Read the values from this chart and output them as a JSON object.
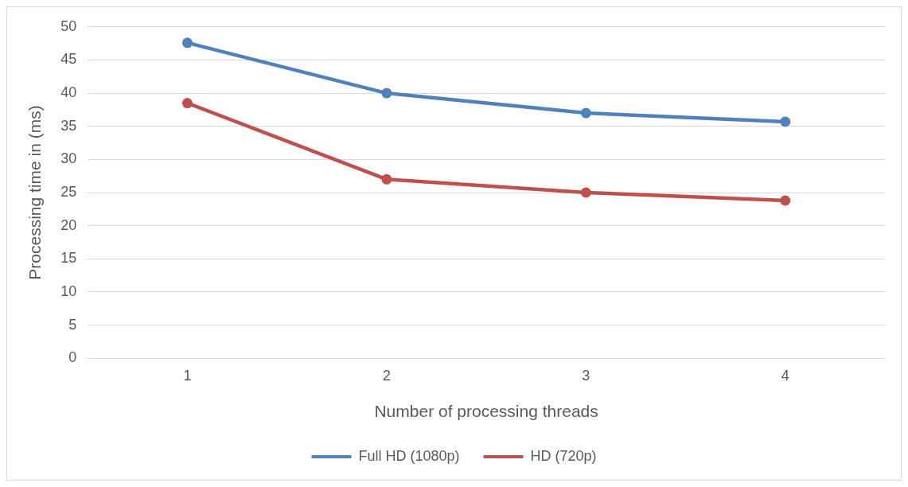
{
  "chart_data": {
    "type": "line",
    "xlabel": "Number of processing threads",
    "ylabel": "Processing time in (ms)",
    "categories": [
      "1",
      "2",
      "3",
      "4"
    ],
    "series": [
      {
        "name": "Full HD (1080p)",
        "color": "#4f81bd",
        "values": [
          47.6,
          40,
          37,
          35.7
        ]
      },
      {
        "name": "HD (720p)",
        "color": "#c0504d",
        "values": [
          38.5,
          27,
          25,
          23.8
        ]
      }
    ],
    "ylim": [
      0,
      50
    ],
    "yticks": [
      0,
      5,
      10,
      15,
      20,
      25,
      30,
      35,
      40,
      45,
      50
    ],
    "grid": "y",
    "legend": "bottom",
    "marker": "circle",
    "line_style": "solid"
  }
}
